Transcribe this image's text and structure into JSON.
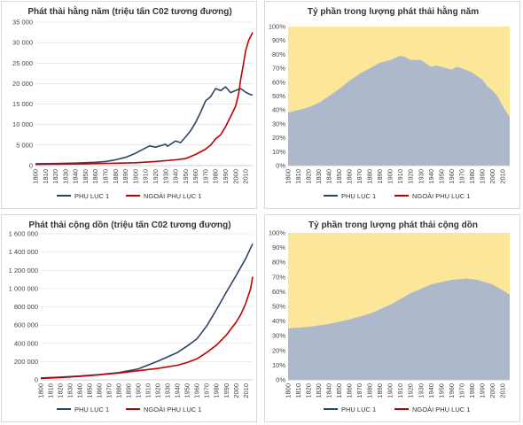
{
  "colors": {
    "annex1": "#2E4466",
    "non_annex1": "#C00000",
    "share_fill": "#ADB9CA",
    "remainder_fill": "#FCE69A",
    "grid": "#d9d9d9"
  },
  "chart_data": [
    {
      "type": "line",
      "title": "Phát thải hằng năm (triệu tấn C02 tương đương)",
      "ylim": [
        0,
        35000
      ],
      "yticks": [
        "0",
        "5 000",
        "10 000",
        "15 000",
        "20 000",
        "25 000",
        "30 000",
        "35 000"
      ],
      "ytick_values": [
        0,
        5000,
        10000,
        15000,
        20000,
        25000,
        30000,
        35000
      ],
      "xlim": [
        1800,
        2017
      ],
      "xticks": [
        "1800",
        "1810",
        "1820",
        "1830",
        "1840",
        "1850",
        "1860",
        "1870",
        "1880",
        "1890",
        "1900",
        "1910",
        "1920",
        "1930",
        "1940",
        "1950",
        "1960",
        "1970",
        "1980",
        "1990",
        "2000",
        "2010"
      ],
      "grid": "horizontal",
      "legend": "bottom",
      "series": [
        {
          "name": "PHỤ LỤC 1",
          "color_key": "annex1",
          "x": [
            1800,
            1820,
            1840,
            1860,
            1870,
            1880,
            1890,
            1900,
            1910,
            1914,
            1920,
            1930,
            1932,
            1940,
            1945,
            1950,
            1955,
            1960,
            1965,
            1970,
            1975,
            1980,
            1985,
            1990,
            1995,
            2000,
            2005,
            2010,
            2015,
            2017
          ],
          "y": [
            450,
            500,
            600,
            800,
            1000,
            1400,
            2000,
            3000,
            4300,
            4800,
            4500,
            5200,
            4700,
            6000,
            5600,
            7000,
            8500,
            10500,
            13000,
            15800,
            16800,
            18800,
            18300,
            19200,
            17800,
            18300,
            18800,
            17900,
            17300,
            17200
          ]
        },
        {
          "name": "NGOÀI PHỤ LỤC 1",
          "color_key": "non_annex1",
          "x": [
            1800,
            1850,
            1900,
            1920,
            1940,
            1950,
            1960,
            1970,
            1975,
            1980,
            1985,
            1990,
            1995,
            2000,
            2003,
            2005,
            2008,
            2010,
            2013,
            2015,
            2017
          ],
          "y": [
            300,
            400,
            700,
            1000,
            1400,
            1700,
            2700,
            4000,
            5000,
            6500,
            7500,
            9500,
            12000,
            14500,
            17500,
            21000,
            25000,
            28000,
            30500,
            31500,
            32500
          ]
        }
      ]
    },
    {
      "type": "area",
      "title": "Tỷ phần trong lượng phát thải hằng năm",
      "ylim": [
        0,
        100
      ],
      "yticks": [
        "0%",
        "10%",
        "20%",
        "30%",
        "40%",
        "50%",
        "60%",
        "70%",
        "80%",
        "90%",
        "100%"
      ],
      "xlim": [
        1800,
        2017
      ],
      "xticks": [
        "1800",
        "1810",
        "1820",
        "1830",
        "1840",
        "1850",
        "1860",
        "1870",
        "1880",
        "1890",
        "1900",
        "1910",
        "1920",
        "1930",
        "1940",
        "1950",
        "1960",
        "1970",
        "1980",
        "1990",
        "2000",
        "2010"
      ],
      "legend": "bottom",
      "series": [
        {
          "name": "PHỤ LỤC 1",
          "color_key": "annex1",
          "x": [
            1800,
            1810,
            1820,
            1830,
            1840,
            1850,
            1860,
            1870,
            1880,
            1890,
            1900,
            1910,
            1915,
            1920,
            1930,
            1940,
            1945,
            1950,
            1960,
            1965,
            1970,
            1980,
            1990,
            1995,
            2000,
            2005,
            2010,
            2015,
            2017
          ],
          "y": [
            38,
            40,
            42,
            45,
            50,
            55,
            61,
            66,
            70,
            74,
            76,
            79,
            78,
            76,
            76,
            71,
            72,
            71,
            69,
            71,
            70,
            67,
            62,
            57,
            54,
            50,
            43,
            37,
            35
          ]
        },
        {
          "name": "NGOÀI PHỤ LỤC 1",
          "color_key": "non_annex1",
          "x": [],
          "y": []
        }
      ]
    },
    {
      "type": "line",
      "title": "Phát thải cộng dồn (triệu tấn C02 tương đương)",
      "ylim": [
        0,
        1600000
      ],
      "yticks": [
        "0",
        "200 000",
        "400 000",
        "600 000",
        "800 000",
        "1 000 000",
        "1 200 000",
        "1 400 000",
        "1 600 000"
      ],
      "ytick_values": [
        0,
        200000,
        400000,
        600000,
        800000,
        1000000,
        1200000,
        1400000,
        1600000
      ],
      "xlim": [
        1800,
        2017
      ],
      "xticks": [
        "1800",
        "1810",
        "1820",
        "1830",
        "1840",
        "1850",
        "1860",
        "1870",
        "1880",
        "1890",
        "1900",
        "1910",
        "1920",
        "1930",
        "1940",
        "1950",
        "1960",
        "1970",
        "1980",
        "1990",
        "2000",
        "2010"
      ],
      "grid": "horizontal",
      "legend": "bottom",
      "series": [
        {
          "name": "PHỤ LỤC 1",
          "color_key": "annex1",
          "x": [
            1800,
            1820,
            1840,
            1860,
            1880,
            1900,
            1920,
            1940,
            1950,
            1960,
            1970,
            1980,
            1990,
            2000,
            2010,
            2017
          ],
          "y": [
            20000,
            30000,
            42000,
            58000,
            80000,
            120000,
            205000,
            300000,
            370000,
            450000,
            590000,
            770000,
            960000,
            1140000,
            1330000,
            1490000
          ]
        },
        {
          "name": "NGOÀI PHỤ LỤC 1",
          "color_key": "non_annex1",
          "x": [
            1800,
            1820,
            1840,
            1860,
            1880,
            1900,
            1920,
            1940,
            1950,
            1960,
            1970,
            1980,
            1990,
            2000,
            2005,
            2010,
            2015,
            2017
          ],
          "y": [
            15000,
            25000,
            38000,
            55000,
            75000,
            100000,
            125000,
            160000,
            190000,
            230000,
            300000,
            380000,
            490000,
            630000,
            720000,
            840000,
            1000000,
            1130000
          ]
        }
      ]
    },
    {
      "type": "area",
      "title": "Tỷ phần trong lượng phát thải cộng dồn",
      "ylim": [
        0,
        100
      ],
      "yticks": [
        "0%",
        "10%",
        "20%",
        "30%",
        "40%",
        "50%",
        "60%",
        "70%",
        "80%",
        "90%",
        "100%"
      ],
      "xlim": [
        1800,
        2017
      ],
      "xticks": [
        "1800",
        "1810",
        "1820",
        "1830",
        "1840",
        "1850",
        "1860",
        "1870",
        "1880",
        "1890",
        "1900",
        "1910",
        "1920",
        "1930",
        "1940",
        "1950",
        "1960",
        "1970",
        "1980",
        "1990",
        "2000",
        "2010"
      ],
      "legend": "bottom",
      "series": [
        {
          "name": "PHỤ LỤC 1",
          "color_key": "annex1",
          "x": [
            1800,
            1820,
            1840,
            1860,
            1880,
            1900,
            1920,
            1940,
            1960,
            1975,
            1985,
            1990,
            2000,
            2010,
            2017
          ],
          "y": [
            35,
            36,
            38,
            41,
            45,
            51,
            59,
            65,
            68,
            69,
            68,
            67,
            65,
            61,
            58
          ]
        },
        {
          "name": "NGOÀI PHỤ LỤC 1",
          "color_key": "non_annex1",
          "x": [],
          "y": []
        }
      ]
    }
  ]
}
